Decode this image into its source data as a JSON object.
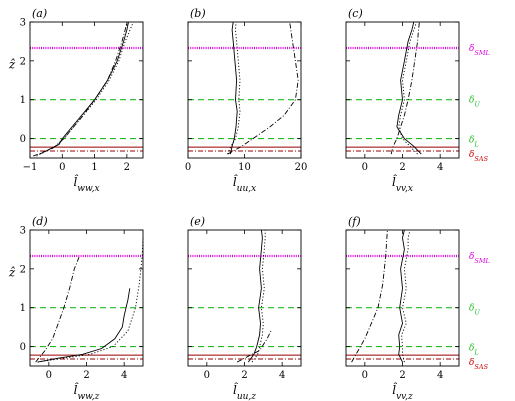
{
  "chart_data": [
    {
      "type": "line",
      "panel_label": "(a)",
      "xlabel": "l̂_ww,x",
      "ylabel": "ẑ",
      "xlim": [
        -1,
        2.5
      ],
      "ylim": [
        -0.5,
        3
      ],
      "xticks": [
        -1,
        0,
        1,
        2
      ],
      "yticks": [
        0,
        1,
        2,
        3
      ],
      "xtick_labels": [
        "−1",
        "0",
        "1",
        "2"
      ],
      "ytick_labels": [
        "0",
        "1",
        "2",
        "3"
      ],
      "series": [
        {
          "style": "solid",
          "x": [
            -0.7,
            -0.1,
            0.0,
            0.3,
            0.6,
            1.0,
            1.4,
            1.7,
            1.9,
            2.0,
            2.05
          ],
          "y": [
            -0.4,
            -0.15,
            0.0,
            0.3,
            0.6,
            1.0,
            1.5,
            2.0,
            2.5,
            2.8,
            3.0
          ]
        },
        {
          "style": "dotted",
          "x": [
            -0.8,
            -0.2,
            0.05,
            0.35,
            0.65,
            1.05,
            1.45,
            1.75,
            1.95,
            2.1,
            2.2
          ],
          "y": [
            -0.45,
            -0.2,
            0.0,
            0.3,
            0.6,
            1.0,
            1.5,
            2.0,
            2.5,
            2.8,
            3.0
          ]
        },
        {
          "style": "dashdot",
          "x": [
            -0.9,
            -0.3,
            0.05,
            0.35,
            0.65,
            1.0,
            1.4,
            1.65,
            1.85,
            1.95,
            2.0
          ],
          "y": [
            -0.45,
            -0.25,
            0.0,
            0.3,
            0.6,
            1.0,
            1.5,
            2.0,
            2.5,
            2.8,
            3.0
          ]
        }
      ]
    },
    {
      "type": "line",
      "panel_label": "(b)",
      "xlabel": "l̂_uu,x",
      "ylabel": "",
      "xlim": [
        0,
        20
      ],
      "ylim": [
        -0.5,
        3
      ],
      "xticks": [
        0,
        10,
        20
      ],
      "yticks": [
        0,
        1,
        2,
        3
      ],
      "xtick_labels": [
        "0",
        "10",
        "20"
      ],
      "ytick_labels": [
        "",
        "",
        "",
        ""
      ],
      "series": [
        {
          "style": "solid",
          "x": [
            7.5,
            7.8,
            8.2,
            8.5,
            8.7,
            8.4,
            8.6,
            8.3,
            8.0,
            7.8,
            8.0
          ],
          "y": [
            -0.4,
            -0.2,
            0.0,
            0.3,
            0.7,
            1.0,
            1.5,
            2.0,
            2.5,
            2.8,
            3.0
          ]
        },
        {
          "style": "dotted",
          "x": [
            7.0,
            7.6,
            8.4,
            8.9,
            9.2,
            9.0,
            9.2,
            8.9,
            8.6,
            8.4,
            8.5
          ],
          "y": [
            -0.4,
            -0.2,
            0.0,
            0.3,
            0.7,
            1.0,
            1.5,
            2.0,
            2.5,
            2.8,
            3.0
          ]
        },
        {
          "style": "dashdot",
          "x": [
            7.0,
            9.5,
            11.5,
            14.5,
            17.0,
            19.0,
            19.5,
            19.0,
            18.5,
            18.2,
            18.0
          ],
          "y": [
            -0.4,
            -0.2,
            0.0,
            0.3,
            0.6,
            1.0,
            1.5,
            2.0,
            2.5,
            2.8,
            3.0
          ]
        }
      ]
    },
    {
      "type": "line",
      "panel_label": "(c)",
      "xlabel": "l̂_vv,x",
      "ylabel": "",
      "xlim": [
        -1,
        5
      ],
      "ylim": [
        -0.5,
        3
      ],
      "xticks": [
        0,
        2,
        4
      ],
      "yticks": [
        0,
        1,
        2,
        3
      ],
      "xtick_labels": [
        "0",
        "2",
        "4"
      ],
      "ytick_labels": [
        "",
        "",
        "",
        ""
      ],
      "series": [
        {
          "style": "solid",
          "x": [
            3.0,
            2.6,
            2.1,
            1.7,
            1.8,
            2.0,
            1.9,
            2.1,
            2.3,
            2.5,
            2.6
          ],
          "y": [
            -0.4,
            -0.2,
            0.0,
            0.3,
            0.6,
            1.0,
            1.5,
            2.0,
            2.5,
            2.8,
            3.0
          ]
        },
        {
          "style": "dotted",
          "x": [
            2.8,
            2.4,
            2.0,
            1.8,
            1.9,
            2.1,
            2.0,
            2.2,
            2.4,
            2.6,
            2.75
          ],
          "y": [
            -0.4,
            -0.2,
            0.0,
            0.3,
            0.6,
            1.0,
            1.5,
            2.0,
            2.5,
            2.8,
            3.0
          ]
        },
        {
          "style": "dashdot",
          "x": [
            1.4,
            1.5,
            1.7,
            1.9,
            2.1,
            2.3,
            2.5,
            2.65,
            2.8,
            2.85,
            2.9
          ],
          "y": [
            -0.4,
            -0.2,
            0.0,
            0.3,
            0.6,
            1.0,
            1.5,
            2.0,
            2.5,
            2.8,
            3.0
          ]
        }
      ]
    },
    {
      "type": "line",
      "panel_label": "(d)",
      "xlabel": "l̂_ww,z",
      "ylabel": "ẑ",
      "xlim": [
        -1,
        5
      ],
      "ylim": [
        -0.5,
        3
      ],
      "xticks": [
        0,
        2,
        4
      ],
      "yticks": [
        0,
        1,
        2,
        3
      ],
      "xtick_labels": [
        "0",
        "2",
        "4"
      ],
      "ytick_labels": [
        "0",
        "1",
        "2",
        "3"
      ],
      "series": [
        {
          "style": "solid",
          "x": [
            -0.6,
            0.5,
            1.8,
            2.8,
            3.5,
            3.9,
            4.0,
            4.2,
            4.3
          ],
          "y": [
            -0.4,
            -0.3,
            -0.2,
            -0.05,
            0.2,
            0.5,
            0.8,
            1.2,
            1.5
          ]
        },
        {
          "style": "dotted",
          "x": [
            -0.6,
            0.8,
            2.2,
            3.4,
            4.2,
            4.6,
            4.8,
            4.95,
            5.0
          ],
          "y": [
            -0.4,
            -0.3,
            -0.2,
            0.0,
            0.4,
            1.0,
            1.6,
            2.3,
            2.8
          ]
        },
        {
          "style": "dashdot",
          "x": [
            -0.7,
            -0.2,
            0.2,
            0.5,
            0.8,
            1.1,
            1.35,
            1.6
          ],
          "y": [
            -0.4,
            -0.1,
            0.2,
            0.6,
            1.0,
            1.5,
            2.0,
            2.3
          ]
        }
      ]
    },
    {
      "type": "line",
      "panel_label": "(e)",
      "xlabel": "l̂_uu,z",
      "ylabel": "",
      "xlim": [
        -1,
        5
      ],
      "ylim": [
        -0.5,
        3
      ],
      "xticks": [
        0,
        2,
        4
      ],
      "yticks": [
        0,
        1,
        2,
        3
      ],
      "xtick_labels": [
        "0",
        "2",
        "4"
      ],
      "ytick_labels": [
        "",
        "",
        "",
        ""
      ],
      "series": [
        {
          "style": "solid",
          "x": [
            2.2,
            2.5,
            2.65,
            2.8,
            2.85,
            2.75,
            2.9,
            2.8,
            2.9,
            2.95,
            2.9
          ],
          "y": [
            -0.4,
            -0.2,
            0.0,
            0.3,
            0.6,
            1.0,
            1.5,
            2.0,
            2.5,
            2.8,
            3.0
          ]
        },
        {
          "style": "dotted",
          "x": [
            2.4,
            2.7,
            2.8,
            2.95,
            3.0,
            2.9,
            3.05,
            2.95,
            3.05,
            3.1,
            3.1
          ],
          "y": [
            -0.4,
            -0.2,
            0.0,
            0.3,
            0.6,
            1.0,
            1.5,
            2.0,
            2.5,
            2.8,
            3.0
          ]
        },
        {
          "style": "dashdot",
          "x": [
            1.6,
            2.0,
            2.4,
            2.8,
            3.2,
            3.4
          ],
          "y": [
            -0.4,
            -0.3,
            -0.2,
            -0.1,
            0.2,
            0.4
          ]
        }
      ]
    },
    {
      "type": "line",
      "panel_label": "(f)",
      "xlabel": "l̂_vv,z",
      "ylabel": "",
      "xlim": [
        -1,
        5
      ],
      "ylim": [
        -0.5,
        3
      ],
      "xticks": [
        0,
        2,
        4
      ],
      "yticks": [
        0,
        1,
        2,
        3
      ],
      "xtick_labels": [
        "0",
        "2",
        "4"
      ],
      "ytick_labels": [
        "",
        "",
        "",
        ""
      ],
      "series": [
        {
          "style": "solid",
          "x": [
            2.0,
            1.8,
            1.85,
            1.8,
            2.0,
            1.85,
            2.0,
            1.9,
            2.1,
            2.0,
            2.1
          ],
          "y": [
            -0.4,
            -0.2,
            0.0,
            0.3,
            0.6,
            1.0,
            1.5,
            2.0,
            2.5,
            2.8,
            3.0
          ]
        },
        {
          "style": "dotted",
          "x": [
            2.1,
            2.0,
            2.0,
            1.95,
            2.2,
            2.0,
            2.2,
            2.1,
            2.3,
            2.3,
            2.4
          ],
          "y": [
            -0.4,
            -0.2,
            0.0,
            0.3,
            0.6,
            1.0,
            1.5,
            2.0,
            2.5,
            2.8,
            3.0
          ]
        },
        {
          "style": "dashdot",
          "x": [
            -0.7,
            -0.35,
            0.0,
            0.35,
            0.7,
            0.95,
            1.1,
            1.2
          ],
          "y": [
            -0.4,
            -0.1,
            0.2,
            0.6,
            1.0,
            1.6,
            2.3,
            3.0
          ]
        }
      ]
    }
  ],
  "reference_lines": [
    {
      "label": "δ_SML",
      "y": 2.33,
      "color": "#dd00dd",
      "style": "dotted"
    },
    {
      "label": "δ_U",
      "y": 1.0,
      "color": "#22bb22",
      "style": "dashed"
    },
    {
      "label": "δ_L",
      "y": 0.0,
      "color": "#22bb22",
      "style": "dashed"
    },
    {
      "label": "",
      "y": -0.22,
      "color": "#990000",
      "style": "solid"
    },
    {
      "label": "δ_SAS",
      "y": -0.32,
      "color": "#990000",
      "style": "dashdot"
    }
  ],
  "annotations": {
    "sml_main": "δ",
    "sml_sub": "SML",
    "u_main": "δ",
    "u_sub": "U",
    "l_main": "δ",
    "l_sub": "L",
    "sas_main": "δ",
    "sas_sub": "SAS"
  },
  "colors": {
    "sml": "#dd00dd",
    "shear": "#22bb22",
    "sas": "#cc0000",
    "sas_line": "#990000"
  }
}
